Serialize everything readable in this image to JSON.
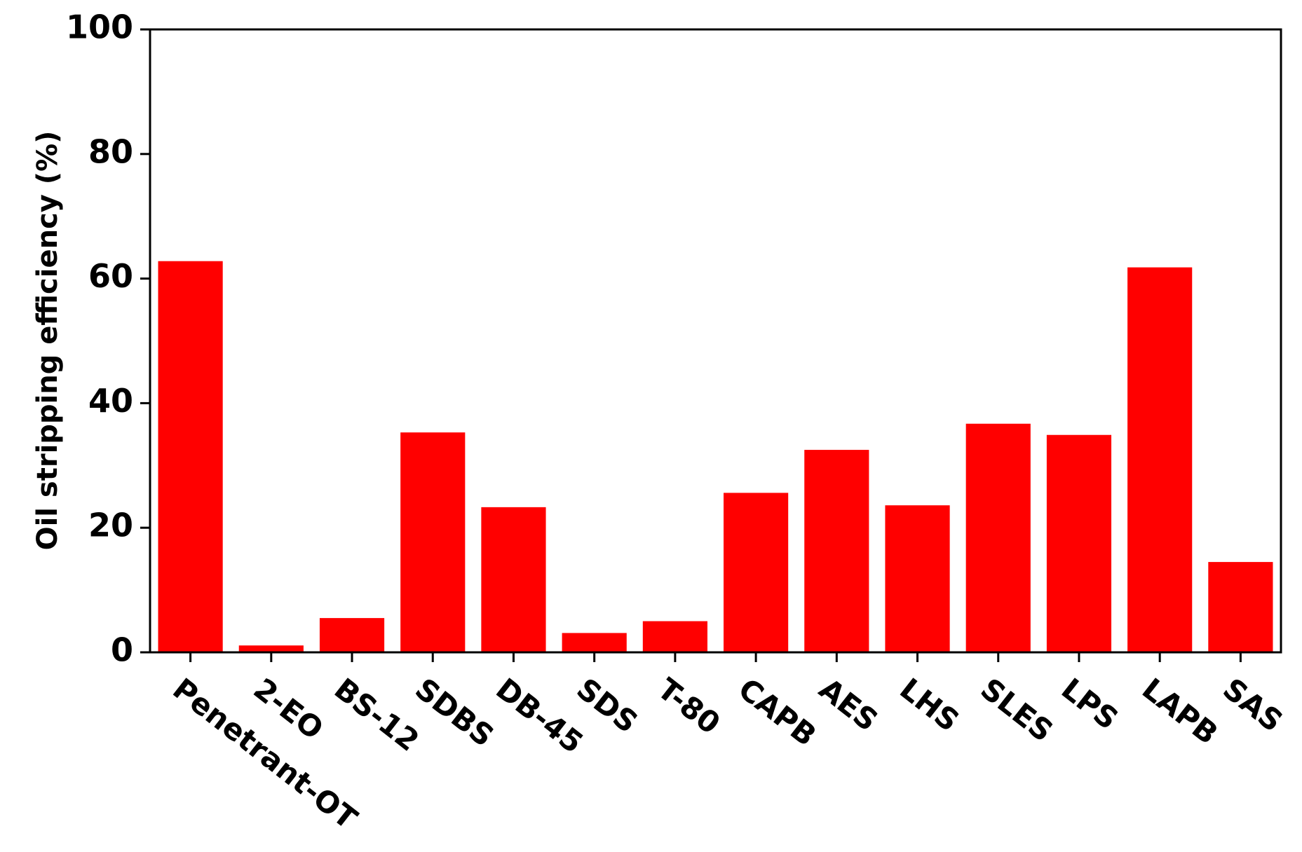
{
  "chart_data": {
    "type": "bar",
    "y_label": "Oil stripping efficiency (%)",
    "categories": [
      "Penetrant-OT",
      "2-EO",
      "BS-12",
      "SDBS",
      "DB-45",
      "SDS",
      "T-80",
      "CAPB",
      "AES",
      "LHS",
      "SLES",
      "LPS",
      "LAPB",
      "SAS"
    ],
    "values": [
      62.8,
      1.1,
      5.5,
      35.3,
      23.3,
      3.1,
      5.0,
      25.6,
      32.5,
      23.6,
      36.7,
      34.9,
      61.8,
      14.5
    ],
    "color": "#ff0000",
    "ylim": [
      0,
      100
    ],
    "yticks": [
      0,
      20,
      40,
      60,
      80,
      100
    ],
    "grid": false
  }
}
